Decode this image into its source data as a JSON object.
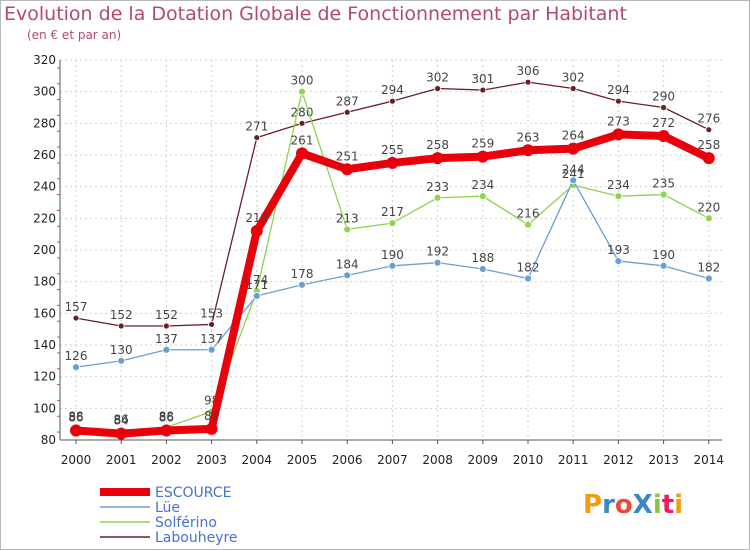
{
  "header": {
    "title": "Evolution de la Dotation Globale de Fonctionnement par Habitant",
    "subtitle": "(en € et par an)"
  },
  "logo": {
    "text": "ProXiti",
    "colors": [
      "#f39c12",
      "#3a86c8",
      "#e74c3c",
      "#3a86c8",
      "#8bc34a",
      "#e91e63",
      "#f39c12"
    ]
  },
  "chart_data": {
    "type": "line",
    "title": "Evolution de la Dotation Globale de Fonctionnement par Habitant",
    "subtitle": "(en € et par an)",
    "xlabel": "",
    "ylabel": "",
    "ylim": [
      80,
      320
    ],
    "yticks": [
      80,
      100,
      120,
      140,
      160,
      180,
      200,
      220,
      240,
      260,
      280,
      300,
      320
    ],
    "grid": true,
    "legend_position": "bottom-left",
    "x": [
      "2000",
      "2001",
      "2002",
      "2003",
      "2004",
      "2005",
      "2006",
      "2007",
      "2008",
      "2009",
      "2010",
      "2011",
      "2012",
      "2013",
      "2014"
    ],
    "series": [
      {
        "name": "Labouheyre",
        "color": "#6b1f24",
        "width": 1.3,
        "marker": 3,
        "values": [
          157,
          152,
          152,
          153,
          271,
          280,
          287,
          294,
          302,
          301,
          306,
          302,
          294,
          290,
          276
        ],
        "labels": [
          "157",
          "152",
          "152",
          "153",
          "271",
          "280",
          "287",
          "294",
          "302",
          "301",
          "306",
          "302",
          "294",
          "290",
          "276"
        ]
      },
      {
        "name": "Solférino",
        "color": "#8fd34e",
        "width": 1.3,
        "marker": 3.5,
        "values": [
          88,
          86,
          88,
          98,
          174,
          300,
          213,
          217,
          233,
          234,
          216,
          241,
          234,
          235,
          220
        ],
        "labels": [
          "88",
          "86",
          "88",
          "98",
          "174",
          "300",
          "213",
          "217",
          "233",
          "234",
          "216",
          "241",
          "234",
          "235",
          "220"
        ]
      },
      {
        "name": "Lüe",
        "color": "#6a9fd4",
        "width": 1.3,
        "marker": 3.5,
        "values": [
          126,
          130,
          137,
          137,
          171,
          178,
          184,
          190,
          192,
          188,
          182,
          244,
          193,
          190,
          182
        ],
        "labels": [
          "126",
          "130",
          "137",
          "137",
          "171",
          "178",
          "184",
          "190",
          "192",
          "188",
          "182",
          "244",
          "193",
          "190",
          "182"
        ]
      },
      {
        "name": "ESCOURCE",
        "color": "#e8000b",
        "width": 8,
        "marker": 6,
        "values": [
          86,
          84,
          86,
          87,
          212,
          261,
          251,
          255,
          258,
          259,
          263,
          264,
          273,
          272,
          258
        ],
        "labels": [
          "86",
          "84",
          "86",
          "87",
          "212",
          "261",
          "251",
          "255",
          "258",
          "259",
          "263",
          "264",
          "273",
          "272",
          "258"
        ]
      }
    ],
    "legend": [
      {
        "name": "ESCOURCE",
        "color": "#e8000b",
        "width": 8
      },
      {
        "name": "Lüe",
        "color": "#6a9fd4",
        "width": 1.5
      },
      {
        "name": "Solférino",
        "color": "#8fd34e",
        "width": 1.5
      },
      {
        "name": "Labouheyre",
        "color": "#6b1f24",
        "width": 1.5
      }
    ]
  }
}
